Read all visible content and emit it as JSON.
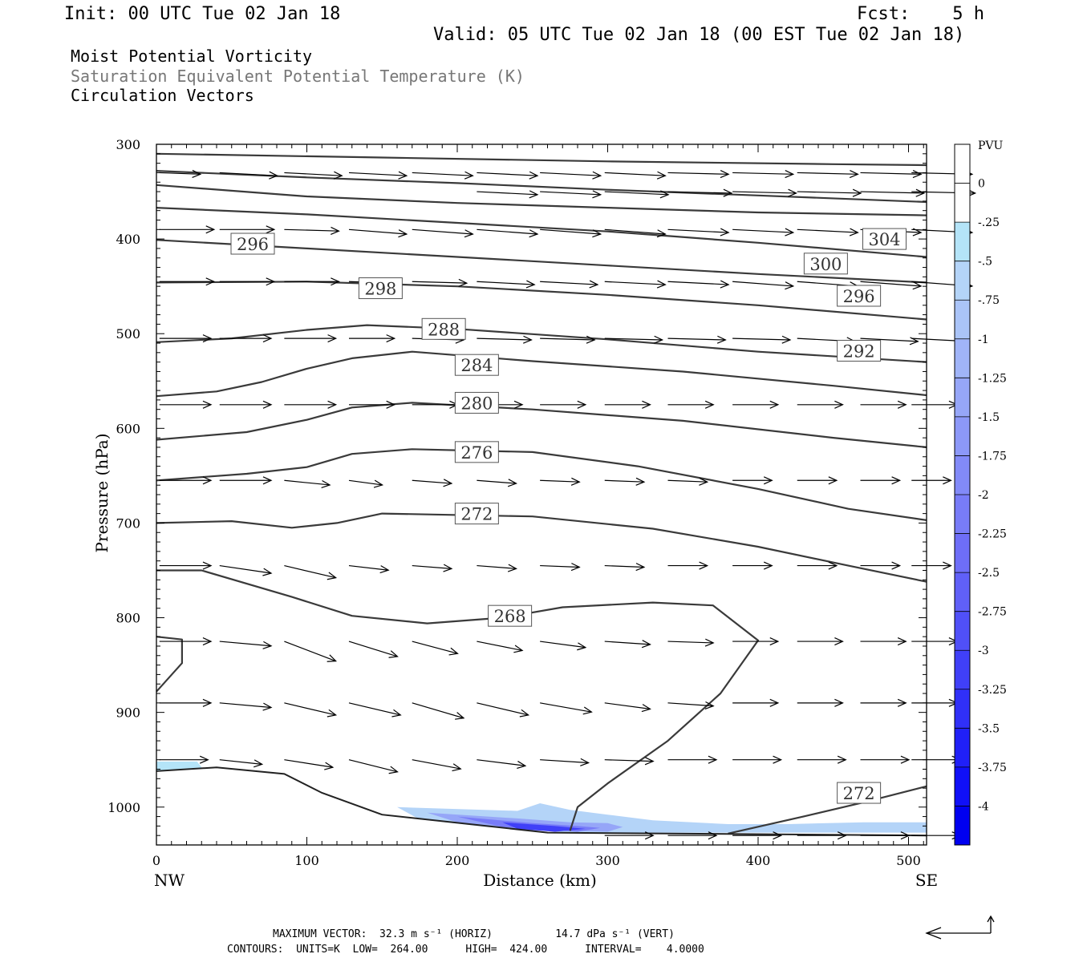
{
  "header": {
    "init": "Init: 00 UTC Tue 02 Jan 18",
    "fcst": "Fcst:    5 h",
    "valid": "Valid: 05 UTC Tue 02 Jan 18 (00 EST Tue 02 Jan 18)"
  },
  "fields": [
    "Moist Potential Vorticity",
    "Saturation Equivalent Potential Temperature (K)",
    "Circulation Vectors"
  ],
  "colors": {
    "field_primary": "#000000",
    "field_secondary": "#777777",
    "contour": "#3a3a3a",
    "vector": "#000000"
  },
  "chart_data": {
    "type": "contour",
    "xlabel": "Distance (km)",
    "ylabel": "Pressure (hPa)",
    "xlim": [
      0,
      512
    ],
    "ylim": [
      1040,
      300
    ],
    "x_ticks": [
      0,
      100,
      200,
      300,
      400,
      500
    ],
    "x_tick_labels": [
      "0",
      "100",
      "200",
      "300",
      "400",
      "500"
    ],
    "y_ticks": [
      300,
      400,
      500,
      600,
      700,
      800,
      900,
      1000
    ],
    "y_tick_labels": [
      "300",
      "400",
      "500",
      "600",
      "700",
      "800",
      "900",
      "1000"
    ],
    "x_end_labels": {
      "left": "NW",
      "right": "SE"
    },
    "contour_units": "K",
    "contour_labels": [
      {
        "text": "296",
        "x": 64,
        "p": 405
      },
      {
        "text": "304",
        "x": 484,
        "p": 400
      },
      {
        "text": "300",
        "x": 445,
        "p": 426
      },
      {
        "text": "298",
        "x": 149,
        "p": 452
      },
      {
        "text": "296",
        "x": 467,
        "p": 460
      },
      {
        "text": "288",
        "x": 191,
        "p": 495
      },
      {
        "text": "292",
        "x": 467,
        "p": 518
      },
      {
        "text": "284",
        "x": 213,
        "p": 533
      },
      {
        "text": "280",
        "x": 213,
        "p": 573
      },
      {
        "text": "276",
        "x": 213,
        "p": 625
      },
      {
        "text": "272",
        "x": 213,
        "p": 690
      },
      {
        "text": "268",
        "x": 235,
        "p": 798
      },
      {
        "text": "272",
        "x": 467,
        "p": 985
      }
    ],
    "contours": [
      [
        [
          0,
          310
        ],
        [
          150,
          314
        ],
        [
          300,
          318
        ],
        [
          450,
          321
        ],
        [
          512,
          322
        ]
      ],
      [
        [
          0,
          328
        ],
        [
          100,
          335
        ],
        [
          200,
          341
        ],
        [
          300,
          348
        ],
        [
          400,
          354
        ],
        [
          512,
          361
        ]
      ],
      [
        [
          0,
          343
        ],
        [
          100,
          355
        ],
        [
          200,
          362
        ],
        [
          300,
          367
        ],
        [
          400,
          372
        ],
        [
          512,
          375
        ]
      ],
      [
        [
          0,
          367
        ],
        [
          100,
          374
        ],
        [
          200,
          383
        ],
        [
          300,
          392
        ],
        [
          400,
          404
        ],
        [
          512,
          419
        ]
      ],
      [
        [
          0,
          401
        ],
        [
          100,
          410
        ],
        [
          200,
          419
        ],
        [
          300,
          428
        ],
        [
          400,
          437
        ],
        [
          512,
          446
        ]
      ],
      [
        [
          0,
          446
        ],
        [
          100,
          445
        ],
        [
          200,
          450
        ],
        [
          300,
          459
        ],
        [
          400,
          470
        ],
        [
          512,
          485
        ]
      ],
      [
        [
          0,
          509
        ],
        [
          50,
          505
        ],
        [
          100,
          496
        ],
        [
          140,
          491
        ],
        [
          200,
          495
        ],
        [
          300,
          506
        ],
        [
          400,
          519
        ],
        [
          512,
          530
        ]
      ],
      [
        [
          0,
          566
        ],
        [
          40,
          561
        ],
        [
          70,
          551
        ],
        [
          100,
          537
        ],
        [
          130,
          526
        ],
        [
          170,
          519
        ],
        [
          250,
          529
        ],
        [
          350,
          540
        ],
        [
          450,
          555
        ],
        [
          512,
          565
        ]
      ],
      [
        [
          0,
          612
        ],
        [
          60,
          604
        ],
        [
          100,
          591
        ],
        [
          130,
          578
        ],
        [
          170,
          573
        ],
        [
          250,
          580
        ],
        [
          350,
          592
        ],
        [
          450,
          610
        ],
        [
          512,
          620
        ]
      ],
      [
        [
          0,
          655
        ],
        [
          60,
          648
        ],
        [
          100,
          641
        ],
        [
          130,
          627
        ],
        [
          170,
          622
        ],
        [
          250,
          625
        ],
        [
          320,
          640
        ],
        [
          400,
          664
        ],
        [
          460,
          685
        ],
        [
          512,
          697
        ]
      ],
      [
        [
          0,
          700
        ],
        [
          50,
          698
        ],
        [
          90,
          705
        ],
        [
          120,
          700
        ],
        [
          150,
          690
        ],
        [
          250,
          693
        ],
        [
          330,
          706
        ],
        [
          400,
          725
        ],
        [
          460,
          745
        ],
        [
          512,
          762
        ]
      ],
      [
        [
          0,
          750
        ],
        [
          30,
          750
        ],
        [
          90,
          778
        ],
        [
          130,
          798
        ],
        [
          180,
          806
        ],
        [
          230,
          800
        ],
        [
          270,
          789
        ],
        [
          330,
          784
        ],
        [
          370,
          787
        ],
        [
          400,
          824
        ],
        [
          375,
          880
        ],
        [
          340,
          930
        ],
        [
          300,
          975
        ],
        [
          280,
          1000
        ],
        [
          275,
          1025
        ]
      ],
      [
        [
          380,
          1028
        ],
        [
          430,
          1010
        ],
        [
          470,
          995
        ],
        [
          512,
          978
        ]
      ],
      [
        [
          0,
          820
        ],
        [
          17,
          823
        ],
        [
          17,
          848
        ],
        [
          0,
          878
        ]
      ]
    ],
    "surface": [
      [
        0,
        962
      ],
      [
        40,
        958
      ],
      [
        85,
        965
      ],
      [
        110,
        985
      ],
      [
        150,
        1008
      ],
      [
        260,
        1027
      ],
      [
        512,
        1030
      ]
    ],
    "shading": [
      {
        "pvu": -0.5,
        "poly": [
          [
            0,
            952
          ],
          [
            27,
            952
          ],
          [
            30,
            958
          ],
          [
            0,
            962
          ]
        ]
      },
      {
        "pvu": -0.25,
        "poly": [
          [
            0,
            952
          ],
          [
            27,
            952
          ],
          [
            30,
            958
          ],
          [
            0,
            962
          ]
        ]
      },
      {
        "pvu": -0.5,
        "poly": [
          [
            160,
            1000
          ],
          [
            240,
            1004
          ],
          [
            255,
            996
          ],
          [
            275,
            1003
          ],
          [
            300,
            1008
          ],
          [
            330,
            1014
          ],
          [
            380,
            1018
          ],
          [
            420,
            1018
          ],
          [
            470,
            1016
          ],
          [
            512,
            1016
          ],
          [
            512,
            1027
          ],
          [
            275,
            1027
          ],
          [
            220,
            1021
          ],
          [
            175,
            1013
          ]
        ]
      },
      {
        "pvu": -1.25,
        "poly": [
          [
            180,
            1006
          ],
          [
            240,
            1012
          ],
          [
            275,
            1016
          ],
          [
            300,
            1017
          ],
          [
            310,
            1021
          ],
          [
            300,
            1026
          ],
          [
            240,
            1024
          ],
          [
            200,
            1016
          ]
        ]
      },
      {
        "pvu": -2,
        "poly": [
          [
            200,
            1010
          ],
          [
            250,
            1017
          ],
          [
            280,
            1020
          ],
          [
            295,
            1022
          ],
          [
            280,
            1026
          ],
          [
            230,
            1021
          ]
        ]
      },
      {
        "pvu": -3,
        "poly": [
          [
            230,
            1016
          ],
          [
            265,
            1020
          ],
          [
            285,
            1023
          ],
          [
            265,
            1026
          ],
          [
            240,
            1023
          ]
        ]
      }
    ],
    "colorbar": {
      "title": "PVU",
      "tick_labels": [
        "0",
        "-.25",
        "-.5",
        "-.75",
        "-1",
        "-1.25",
        "-1.5",
        "-1.75",
        "-2",
        "-2.25",
        "-2.5",
        "-2.75",
        "-3",
        "-3.25",
        "-3.5",
        "-3.75",
        "-4"
      ],
      "min": -4.25,
      "max": 0.25,
      "colors": [
        "#ffffff",
        "#ffffff",
        "#b4e4f8",
        "#b4d4f8",
        "#aac4f8",
        "#a0b4f8",
        "#96a6f8",
        "#8c98f8",
        "#828af8",
        "#787cf8",
        "#6e6ef8",
        "#6060f8",
        "#5050f8",
        "#4040f8",
        "#3030f8",
        "#2020f8",
        "#1010f8",
        "#0000f0"
      ]
    },
    "vector_columns": [
      2,
      42,
      85,
      128,
      170,
      213,
      255,
      298,
      340,
      383,
      426,
      468,
      502
    ],
    "vector_scale": 0.9,
    "vectors": [
      {
        "p": 330,
        "u": [
          27,
          38,
          38,
          38,
          40,
          40,
          40,
          40,
          40,
          40,
          40,
          40,
          40
        ],
        "v": [
          -1,
          -2,
          -2,
          -2,
          -2,
          -2,
          -2,
          -2,
          -1,
          -1,
          -1,
          -1,
          -1
        ]
      },
      {
        "p": 350,
        "u": [
          0,
          0,
          0,
          0,
          0,
          40,
          40,
          42,
          42,
          42,
          42,
          42,
          42
        ],
        "v": [
          0,
          0,
          0,
          0,
          0,
          -2,
          -2,
          -2,
          -1,
          -1,
          -1,
          -1,
          -1
        ]
      },
      {
        "p": 390,
        "u": [
          36,
          36,
          36,
          38,
          40,
          40,
          40,
          40,
          40,
          40,
          40,
          40,
          40
        ],
        "v": [
          0,
          0,
          -1,
          -3,
          -3,
          -3,
          -3,
          -3,
          -2,
          -2,
          -2,
          -2,
          -2
        ]
      },
      {
        "p": 445,
        "u": [
          36,
          36,
          36,
          30,
          36,
          38,
          38,
          40,
          40,
          40,
          40,
          40,
          40
        ],
        "v": [
          0,
          0,
          0,
          -1,
          -1,
          -2,
          -2,
          -2,
          -2,
          -3,
          -3,
          -3,
          -3
        ]
      },
      {
        "p": 505,
        "u": [
          34,
          34,
          34,
          30,
          34,
          36,
          36,
          38,
          38,
          38,
          38,
          38,
          38
        ],
        "v": [
          0,
          0,
          0,
          0,
          -1,
          -1,
          -1,
          -1,
          -1,
          -1,
          -2,
          -2,
          -2
        ]
      },
      {
        "p": 575,
        "u": [
          34,
          34,
          34,
          30,
          30,
          30,
          30,
          30,
          30,
          30,
          30,
          30,
          30
        ],
        "v": [
          0,
          0,
          0,
          0,
          0,
          0,
          0,
          0,
          0,
          0,
          0,
          0,
          0
        ]
      },
      {
        "p": 655,
        "u": [
          34,
          34,
          30,
          22,
          26,
          26,
          26,
          26,
          26,
          26,
          26,
          26,
          26
        ],
        "v": [
          0,
          0,
          -3,
          -3,
          -2,
          -2,
          -1,
          -1,
          -1,
          0,
          0,
          0,
          0
        ]
      },
      {
        "p": 745,
        "u": [
          34,
          34,
          34,
          26,
          26,
          26,
          26,
          26,
          26,
          26,
          26,
          26,
          26
        ],
        "v": [
          0,
          -5,
          -8,
          -3,
          -2,
          -2,
          -1,
          -1,
          0,
          0,
          0,
          0,
          0
        ]
      },
      {
        "p": 825,
        "u": [
          34,
          34,
          34,
          32,
          30,
          30,
          30,
          30,
          30,
          30,
          30,
          30,
          30
        ],
        "v": [
          0,
          -3,
          -13,
          -10,
          -8,
          -6,
          -4,
          -2,
          -1,
          0,
          0,
          0,
          0
        ]
      },
      {
        "p": 890,
        "u": [
          34,
          34,
          34,
          34,
          34,
          34,
          34,
          30,
          30,
          30,
          30,
          30,
          30
        ],
        "v": [
          0,
          -3,
          -8,
          -8,
          -10,
          -8,
          -6,
          -4,
          -2,
          0,
          0,
          0,
          0
        ]
      },
      {
        "p": 950,
        "u": [
          32,
          28,
          32,
          32,
          32,
          32,
          32,
          32,
          32,
          32,
          32,
          32,
          32
        ],
        "v": [
          0,
          -3,
          -5,
          -8,
          -6,
          -4,
          -2,
          -1,
          0,
          0,
          0,
          0,
          0
        ]
      },
      {
        "p": 1030,
        "u": [
          0,
          0,
          0,
          0,
          0,
          0,
          0,
          32,
          32,
          32,
          32,
          32,
          32
        ],
        "v": [
          0,
          0,
          0,
          0,
          0,
          0,
          0,
          0,
          0,
          0,
          0,
          0,
          0
        ]
      }
    ]
  },
  "footer": {
    "line1": "MAXIMUM VECTOR:  32.3 m s⁻¹ (HORIZ)          14.7 dPa s⁻¹ (VERT)",
    "line2": "CONTOURS:  UNITS=K  LOW=  264.00      HIGH=  424.00      INTERVAL=    4.0000"
  }
}
